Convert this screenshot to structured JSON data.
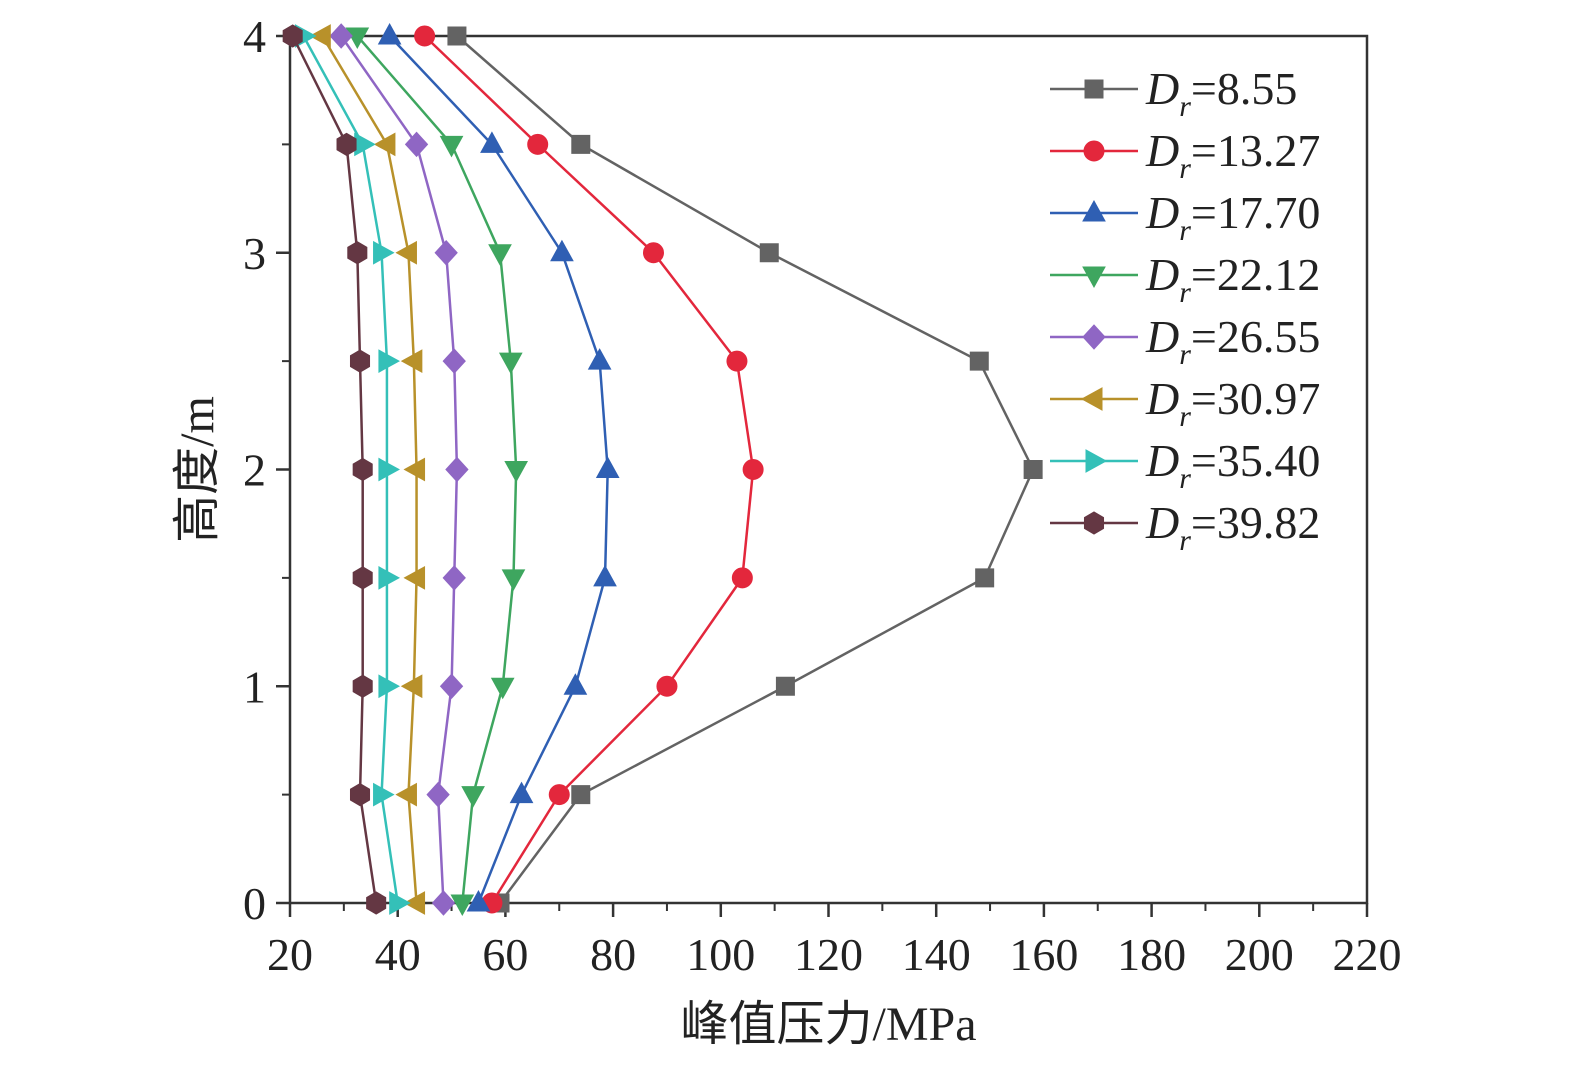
{
  "chart_data": {
    "type": "line",
    "xlabel": "峰值压力/MPa",
    "ylabel": "高度/m",
    "xlim": [
      20,
      220
    ],
    "ylim": [
      0,
      4
    ],
    "x_ticks": [
      "20",
      "40",
      "60",
      "80",
      "100",
      "120",
      "140",
      "160",
      "180",
      "200",
      "220"
    ],
    "y_ticks": [
      "0",
      "1",
      "2",
      "3",
      "4"
    ],
    "grid": false,
    "legend_position": "top-right",
    "y": [
      0,
      0.5,
      1,
      1.5,
      2,
      2.5,
      3,
      3.5,
      4
    ],
    "series": [
      {
        "name_symbol": "D",
        "name_sub": "r",
        "name_value": "=8.55",
        "color": "#636363",
        "marker": "square",
        "x": [
          59,
          74,
          112,
          149,
          158,
          148,
          109,
          74,
          51
        ]
      },
      {
        "name_symbol": "D",
        "name_sub": "r",
        "name_value": "=13.27",
        "color": "#e3273c",
        "marker": "circle",
        "x": [
          57.5,
          70,
          90,
          104,
          106,
          103,
          87.5,
          66,
          45
        ]
      },
      {
        "name_symbol": "D",
        "name_sub": "r",
        "name_value": "=17.70",
        "color": "#2f5fb3",
        "marker": "triangle-up",
        "x": [
          55,
          63,
          73,
          78.5,
          79,
          77.5,
          70.5,
          57.5,
          38.5
        ]
      },
      {
        "name_symbol": "D",
        "name_sub": "r",
        "name_value": "=22.12",
        "color": "#3ea65f",
        "marker": "triangle-down",
        "x": [
          52,
          54,
          59.5,
          61.5,
          62,
          61,
          59,
          50,
          32.5
        ]
      },
      {
        "name_symbol": "D",
        "name_sub": "r",
        "name_value": "=26.55",
        "color": "#8f66c4",
        "marker": "diamond",
        "x": [
          48.5,
          47.5,
          50,
          50.5,
          51,
          50.5,
          49,
          43.5,
          29.5
        ]
      },
      {
        "name_symbol": "D",
        "name_sub": "r",
        "name_value": "=30.97",
        "color": "#b8912a",
        "marker": "triangle-left",
        "x": [
          43.5,
          42,
          43,
          43.5,
          43.5,
          43,
          42,
          38,
          26
        ]
      },
      {
        "name_symbol": "D",
        "name_sub": "r",
        "name_value": "=35.40",
        "color": "#34c0b8",
        "marker": "triangle-right",
        "x": [
          40,
          37,
          38,
          38,
          38,
          38,
          37,
          33.5,
          22.5
        ]
      },
      {
        "name_symbol": "D",
        "name_sub": "r",
        "name_value": "=39.82",
        "color": "#643743",
        "marker": "hexagon",
        "x": [
          36,
          33,
          33.5,
          33.5,
          33.5,
          33,
          32.5,
          30.5,
          20.5
        ]
      }
    ]
  }
}
